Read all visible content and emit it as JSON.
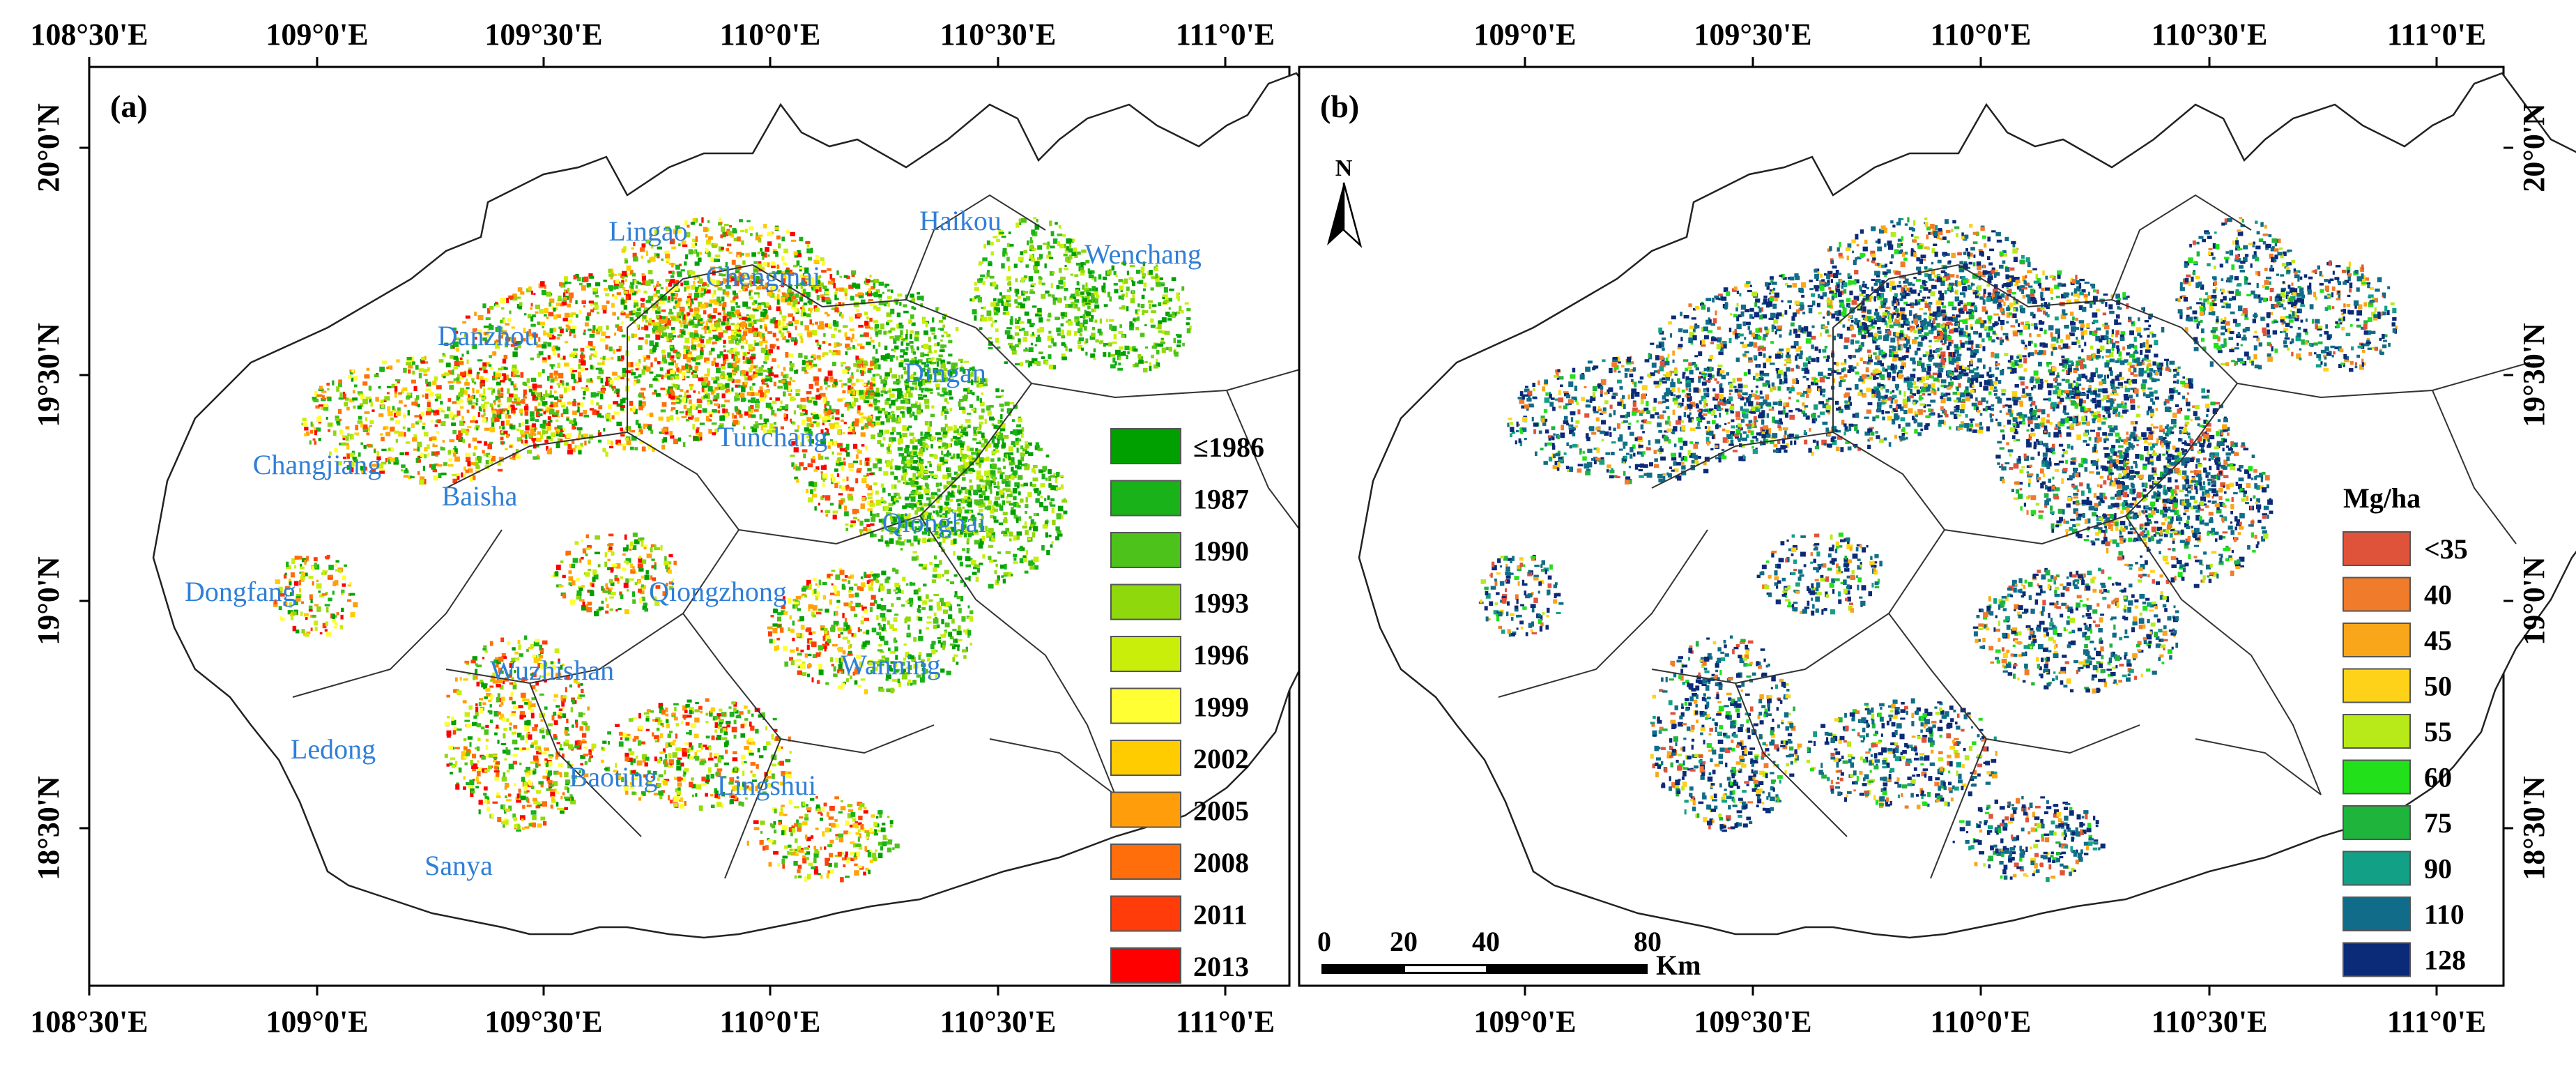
{
  "panel_a": {
    "label": "(a)",
    "top_ticks": [
      "108°30'E",
      "109°0'E",
      "109°30'E",
      "110°0'E",
      "110°30'E",
      "111°0'E"
    ],
    "bottom_ticks": [
      "108°30'E",
      "109°0'E",
      "109°30'E",
      "110°0'E",
      "110°30'E",
      "111°0'E"
    ],
    "left_ticks": [
      "20°0'N",
      "19°30'N",
      "19°0'N",
      "18°30'N"
    ],
    "counties": [
      "Lingao",
      "Haikou",
      "Wenchang",
      "Chengmai",
      "Danzhou",
      "Dingan",
      "Tunchang",
      "Changjiang",
      "Baisha",
      "Qionghai",
      "Dongfang",
      "Qiongzhong",
      "Wuzhishan",
      "Wanning",
      "Ledong",
      "Baoting",
      "Lingshui",
      "Sanya"
    ],
    "legend": {
      "title": "",
      "items": [
        {
          "label": "≤1986",
          "color": "#00a000"
        },
        {
          "label": "1987",
          "color": "#19b219"
        },
        {
          "label": "1990",
          "color": "#4cc21a"
        },
        {
          "label": "1993",
          "color": "#8ed80c"
        },
        {
          "label": "1996",
          "color": "#c8ee0a"
        },
        {
          "label": "1999",
          "color": "#ffff33"
        },
        {
          "label": "2002",
          "color": "#ffcc00"
        },
        {
          "label": "2005",
          "color": "#ff9e0a"
        },
        {
          "label": "2008",
          "color": "#ff6e0a"
        },
        {
          "label": "2011",
          "color": "#ff3c0a"
        },
        {
          "label": "2013",
          "color": "#ff0000"
        }
      ]
    }
  },
  "panel_b": {
    "label": "(b)",
    "north": "N",
    "top_ticks": [
      "109°0'E",
      "109°30'E",
      "110°0'E",
      "110°30'E",
      "111°0'E"
    ],
    "bottom_ticks": [
      "109°0'E",
      "109°30'E",
      "110°0'E",
      "110°30'E",
      "111°0'E"
    ],
    "right_ticks": [
      "20°0'N",
      "19°30'N",
      "19°0'N",
      "18°30'N"
    ],
    "scalebar": {
      "labels": [
        "0",
        "20",
        "40",
        "80"
      ],
      "unit": "Km"
    },
    "legend": {
      "title": "Mg/ha",
      "items": [
        {
          "label": "<35",
          "color": "#e0533b"
        },
        {
          "label": "40",
          "color": "#f07b2a"
        },
        {
          "label": "45",
          "color": "#f9a61a"
        },
        {
          "label": "50",
          "color": "#ffd21a"
        },
        {
          "label": "55",
          "color": "#b8ea1a"
        },
        {
          "label": "60",
          "color": "#22e01a"
        },
        {
          "label": "75",
          "color": "#1fb43c"
        },
        {
          "label": "90",
          "color": "#12a086"
        },
        {
          "label": "110",
          "color": "#106c88"
        },
        {
          "label": "128",
          "color": "#0b2a78"
        }
      ]
    }
  }
}
